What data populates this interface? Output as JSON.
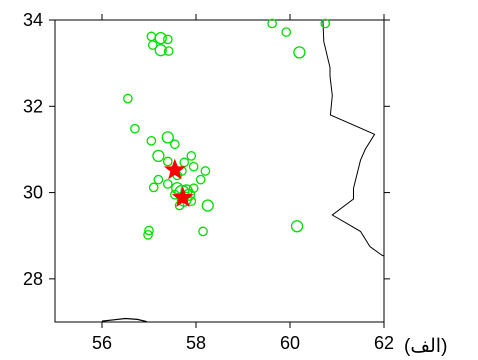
{
  "panel_label": "(الف)",
  "chart_data": {
    "type": "scatter",
    "xlim": [
      55,
      62
    ],
    "ylim": [
      27,
      34
    ],
    "x_ticks": [
      "56",
      "58",
      "60",
      "62"
    ],
    "y_ticks": [
      "28",
      "30",
      "32",
      "34"
    ],
    "grid": false,
    "colors": {
      "events": "#00dd00",
      "stars": "#ff0000",
      "border": "#000000"
    },
    "events": [
      {
        "x": 57.05,
        "y": 33.62,
        "m": 2
      },
      {
        "x": 57.25,
        "y": 33.58,
        "m": 3
      },
      {
        "x": 57.4,
        "y": 33.55,
        "m": 2
      },
      {
        "x": 57.08,
        "y": 33.42,
        "m": 2
      },
      {
        "x": 57.25,
        "y": 33.3,
        "m": 3
      },
      {
        "x": 57.42,
        "y": 33.28,
        "m": 2
      },
      {
        "x": 56.55,
        "y": 32.18,
        "m": 2
      },
      {
        "x": 56.7,
        "y": 31.48,
        "m": 2
      },
      {
        "x": 57.05,
        "y": 31.2,
        "m": 2
      },
      {
        "x": 57.4,
        "y": 31.28,
        "m": 3
      },
      {
        "x": 57.55,
        "y": 31.12,
        "m": 2
      },
      {
        "x": 57.2,
        "y": 30.85,
        "m": 3
      },
      {
        "x": 57.4,
        "y": 30.72,
        "m": 2
      },
      {
        "x": 57.75,
        "y": 30.7,
        "m": 2
      },
      {
        "x": 57.9,
        "y": 30.85,
        "m": 2
      },
      {
        "x": 57.95,
        "y": 30.6,
        "m": 2
      },
      {
        "x": 58.2,
        "y": 30.5,
        "m": 2
      },
      {
        "x": 58.1,
        "y": 30.3,
        "m": 2
      },
      {
        "x": 57.2,
        "y": 30.3,
        "m": 2
      },
      {
        "x": 57.1,
        "y": 30.12,
        "m": 2
      },
      {
        "x": 57.4,
        "y": 30.2,
        "m": 2
      },
      {
        "x": 57.6,
        "y": 30.4,
        "m": 2
      },
      {
        "x": 57.7,
        "y": 30.5,
        "m": 2
      },
      {
        "x": 57.6,
        "y": 30.1,
        "m": 3
      },
      {
        "x": 57.7,
        "y": 30.0,
        "m": 4
      },
      {
        "x": 57.8,
        "y": 30.05,
        "m": 3
      },
      {
        "x": 57.75,
        "y": 29.85,
        "m": 4
      },
      {
        "x": 57.85,
        "y": 29.95,
        "m": 3
      },
      {
        "x": 57.95,
        "y": 30.1,
        "m": 2
      },
      {
        "x": 57.9,
        "y": 29.8,
        "m": 2
      },
      {
        "x": 57.55,
        "y": 29.95,
        "m": 2
      },
      {
        "x": 57.65,
        "y": 29.7,
        "m": 2
      },
      {
        "x": 58.25,
        "y": 29.7,
        "m": 3
      },
      {
        "x": 57.0,
        "y": 29.12,
        "m": 2
      },
      {
        "x": 56.98,
        "y": 29.02,
        "m": 2
      },
      {
        "x": 58.15,
        "y": 29.1,
        "m": 2
      },
      {
        "x": 59.62,
        "y": 33.92,
        "m": 2
      },
      {
        "x": 59.92,
        "y": 33.72,
        "m": 2
      },
      {
        "x": 60.2,
        "y": 33.25,
        "m": 3
      },
      {
        "x": 60.75,
        "y": 33.92,
        "m": 2
      },
      {
        "x": 60.15,
        "y": 29.22,
        "m": 3
      }
    ],
    "stars": [
      {
        "x": 57.55,
        "y": 30.52
      },
      {
        "x": 57.72,
        "y": 29.88
      }
    ],
    "border": [
      [
        60.7,
        34.0
      ],
      [
        60.72,
        33.5
      ],
      [
        60.85,
        32.9
      ],
      [
        60.85,
        32.7
      ],
      [
        60.9,
        32.25
      ],
      [
        60.86,
        31.8
      ],
      [
        61.8,
        31.35
      ],
      [
        61.6,
        31.0
      ],
      [
        61.5,
        30.75
      ],
      [
        61.35,
        30.1
      ],
      [
        61.35,
        29.85
      ],
      [
        60.9,
        29.48
      ],
      [
        61.5,
        29.1
      ],
      [
        61.7,
        28.75
      ],
      [
        61.95,
        28.55
      ],
      [
        62.0,
        28.53
      ]
    ],
    "coast": [
      [
        56.0,
        27.02
      ],
      [
        56.25,
        27.05
      ],
      [
        56.5,
        27.08
      ],
      [
        56.75,
        27.06
      ],
      [
        56.95,
        27.01
      ]
    ]
  }
}
